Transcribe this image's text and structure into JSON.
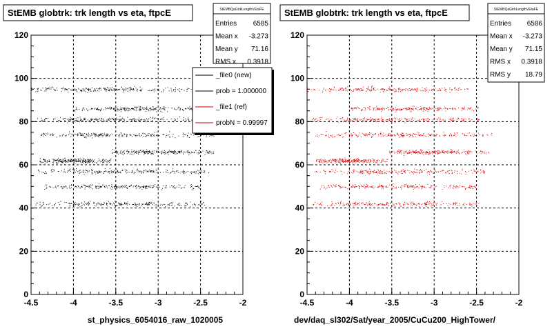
{
  "chart_data": [
    {
      "type": "scatter",
      "title": "StEMB globtrk: trk length vs eta, ftpcE",
      "xlabel": "st_physics_6054016_raw_1020005",
      "ylabel": "",
      "xlim": [
        -4.5,
        -2
      ],
      "ylim": [
        0,
        120
      ],
      "x_ticks": [
        "-4.5",
        "-4",
        "-3.5",
        "-3",
        "-2.5",
        "-2"
      ],
      "y_ticks": [
        "0",
        "20",
        "40",
        "60",
        "80",
        "100",
        "120"
      ],
      "grid": true,
      "marker_color": "#000000",
      "stats": {
        "header": "StEMBQaGtrkLengthVEtaFE",
        "rows": [
          {
            "label": "Entries",
            "value": "6585"
          },
          {
            "label": "Mean x",
            "value": "-3.273"
          },
          {
            "label": "Mean y",
            "value": "71.16"
          },
          {
            "label": "RMS x",
            "value": "0.3918"
          }
        ]
      },
      "legend": {
        "placement": "top-right",
        "entries": [
          {
            "label": "_file0 (new)",
            "color": "#000000"
          },
          {
            "label": "prob = 1.000000",
            "color": "#000000"
          },
          {
            "label": "_file1 (ref)",
            "color": "#cc0000"
          },
          {
            "label": "probN = 0.99997",
            "color": "#cc0000"
          }
        ]
      },
      "bands": [
        {
          "y": 42,
          "x_range": [
            -4.45,
            -2.45
          ]
        },
        {
          "y": 50,
          "x_range": [
            -4.35,
            -2.5
          ]
        },
        {
          "y": 57,
          "x_range": [
            -4.45,
            -2.4
          ]
        },
        {
          "y": 62,
          "x_range": [
            -4.4,
            -3.55
          ]
        },
        {
          "y": 66,
          "x_range": [
            -3.55,
            -2.35
          ]
        },
        {
          "y": 74,
          "x_range": [
            -4.4,
            -2.3
          ]
        },
        {
          "y": 81,
          "x_range": [
            -4.45,
            -2.45
          ]
        },
        {
          "y": 86,
          "x_range": [
            -4.0,
            -2.45
          ]
        },
        {
          "y": 95,
          "x_range": [
            -4.5,
            -2.6
          ]
        }
      ]
    },
    {
      "type": "scatter",
      "title": "StEMB globtrk: trk length vs eta, ftpcE",
      "xlabel": "dev/daq_sl302/Sat/year_2005/CuCu200_HighTower/",
      "ylabel": "",
      "xlim": [
        -4.5,
        -2
      ],
      "ylim": [
        0,
        120
      ],
      "x_ticks": [
        "-4.5",
        "-4",
        "-3.5",
        "-3",
        "-2.5",
        "-2"
      ],
      "y_ticks": [
        "0",
        "20",
        "40",
        "60",
        "80",
        "100",
        "120"
      ],
      "grid": true,
      "marker_color": "#dd0000",
      "stats": {
        "header": "StEMBQaGtrkLengthVEtaFE",
        "rows": [
          {
            "label": "Entries",
            "value": "6586"
          },
          {
            "label": "Mean x",
            "value": "-3.273"
          },
          {
            "label": "Mean y",
            "value": "71.15"
          },
          {
            "label": "RMS x",
            "value": "0.3918"
          },
          {
            "label": "RMS y",
            "value": "18.79"
          }
        ]
      },
      "bands": [
        {
          "y": 42,
          "x_range": [
            -4.45,
            -2.45
          ]
        },
        {
          "y": 50,
          "x_range": [
            -4.35,
            -2.5
          ]
        },
        {
          "y": 57,
          "x_range": [
            -4.45,
            -2.4
          ]
        },
        {
          "y": 62,
          "x_range": [
            -4.4,
            -3.55
          ]
        },
        {
          "y": 66,
          "x_range": [
            -3.55,
            -2.35
          ]
        },
        {
          "y": 74,
          "x_range": [
            -4.4,
            -2.3
          ]
        },
        {
          "y": 81,
          "x_range": [
            -4.45,
            -2.45
          ]
        },
        {
          "y": 86,
          "x_range": [
            -4.0,
            -2.45
          ]
        },
        {
          "y": 95,
          "x_range": [
            -4.5,
            -2.6
          ]
        }
      ]
    }
  ]
}
